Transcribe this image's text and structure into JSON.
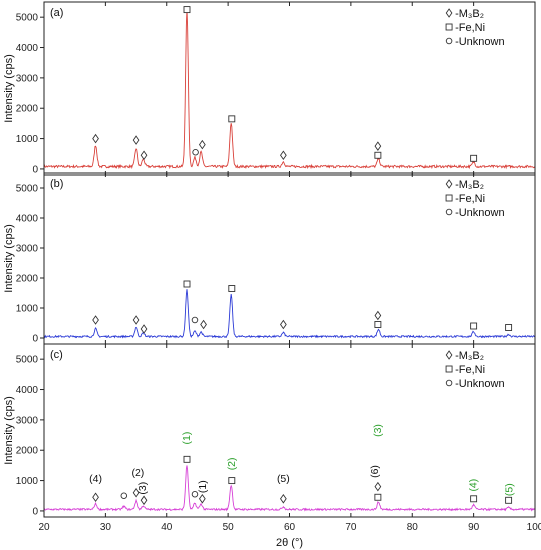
{
  "chart_data": {
    "type": "line",
    "xlabel": "2θ (°)",
    "ylabel": "Intensity (cps)",
    "xlim": [
      20,
      100
    ],
    "ylim": [
      -200,
      5500
    ],
    "x_ticks": [
      20,
      30,
      40,
      50,
      60,
      70,
      80,
      90,
      100
    ],
    "y_ticks": [
      0,
      1000,
      2000,
      3000,
      4000,
      5000
    ],
    "legend": {
      "placement": "top-right",
      "entries": [
        {
          "symbol": "diamond",
          "label": "-M₃B₂"
        },
        {
          "symbol": "square",
          "label": "-Fe,Ni"
        },
        {
          "symbol": "circle",
          "label": "-Unknown"
        }
      ]
    },
    "panels": [
      {
        "label": "(a)",
        "color": "#d9413a",
        "baseline": 80,
        "noise": 40,
        "peaks": [
          {
            "x": 28.4,
            "y": 700
          },
          {
            "x": 35.0,
            "y": 600
          },
          {
            "x": 36.2,
            "y": 250
          },
          {
            "x": 43.3,
            "y": 5150
          },
          {
            "x": 44.6,
            "y": 300
          },
          {
            "x": 45.6,
            "y": 480
          },
          {
            "x": 50.5,
            "y": 1450
          },
          {
            "x": 59.0,
            "y": 160
          },
          {
            "x": 74.5,
            "y": 260
          },
          {
            "x": 90.0,
            "y": 150
          }
        ],
        "markers": [
          {
            "symbol": "diamond",
            "x": 28.4,
            "y": 1000
          },
          {
            "symbol": "diamond",
            "x": 35.0,
            "y": 950
          },
          {
            "symbol": "diamond",
            "x": 36.3,
            "y": 450
          },
          {
            "symbol": "square",
            "x": 43.3,
            "y": 5250
          },
          {
            "symbol": "circle",
            "x": 44.7,
            "y": 550
          },
          {
            "symbol": "diamond",
            "x": 45.8,
            "y": 800
          },
          {
            "symbol": "square",
            "x": 50.6,
            "y": 1650
          },
          {
            "symbol": "diamond",
            "x": 59.0,
            "y": 450
          },
          {
            "symbol": "diamond",
            "x": 74.4,
            "y": 750
          },
          {
            "symbol": "square",
            "x": 74.4,
            "y": 450
          },
          {
            "symbol": "square",
            "x": 90.0,
            "y": 350
          }
        ],
        "annotations": []
      },
      {
        "label": "(b)",
        "color": "#2b3ad6",
        "baseline": 50,
        "noise": 30,
        "peaks": [
          {
            "x": 28.4,
            "y": 260
          },
          {
            "x": 35.0,
            "y": 320
          },
          {
            "x": 36.2,
            "y": 120
          },
          {
            "x": 43.3,
            "y": 1550
          },
          {
            "x": 44.6,
            "y": 180
          },
          {
            "x": 45.6,
            "y": 150
          },
          {
            "x": 50.5,
            "y": 1400
          },
          {
            "x": 59.0,
            "y": 130
          },
          {
            "x": 74.5,
            "y": 240
          },
          {
            "x": 90.0,
            "y": 160
          },
          {
            "x": 95.7,
            "y": 70
          }
        ],
        "markers": [
          {
            "symbol": "diamond",
            "x": 28.4,
            "y": 600
          },
          {
            "symbol": "diamond",
            "x": 35.0,
            "y": 600
          },
          {
            "symbol": "diamond",
            "x": 36.3,
            "y": 300
          },
          {
            "symbol": "square",
            "x": 43.3,
            "y": 1800
          },
          {
            "symbol": "circle",
            "x": 44.6,
            "y": 600
          },
          {
            "symbol": "diamond",
            "x": 46.0,
            "y": 450
          },
          {
            "symbol": "square",
            "x": 50.6,
            "y": 1650
          },
          {
            "symbol": "diamond",
            "x": 59.0,
            "y": 450
          },
          {
            "symbol": "diamond",
            "x": 74.4,
            "y": 750
          },
          {
            "symbol": "square",
            "x": 74.4,
            "y": 450
          },
          {
            "symbol": "square",
            "x": 90.0,
            "y": 400
          },
          {
            "symbol": "square",
            "x": 95.7,
            "y": 350
          }
        ],
        "annotations": []
      },
      {
        "label": "(c)",
        "color": "#d63fd6",
        "baseline": 50,
        "noise": 30,
        "peaks": [
          {
            "x": 28.4,
            "y": 180
          },
          {
            "x": 33.0,
            "y": 100
          },
          {
            "x": 35.0,
            "y": 280
          },
          {
            "x": 36.2,
            "y": 120
          },
          {
            "x": 43.3,
            "y": 1450
          },
          {
            "x": 44.6,
            "y": 200
          },
          {
            "x": 45.6,
            "y": 180
          },
          {
            "x": 50.5,
            "y": 800
          },
          {
            "x": 59.0,
            "y": 90
          },
          {
            "x": 74.5,
            "y": 240
          },
          {
            "x": 90.0,
            "y": 150
          },
          {
            "x": 95.7,
            "y": 60
          }
        ],
        "markers": [
          {
            "symbol": "diamond",
            "x": 28.4,
            "y": 450
          },
          {
            "symbol": "circle",
            "x": 33.0,
            "y": 500
          },
          {
            "symbol": "diamond",
            "x": 35.0,
            "y": 600
          },
          {
            "symbol": "diamond",
            "x": 36.3,
            "y": 350
          },
          {
            "symbol": "square",
            "x": 43.3,
            "y": 1700
          },
          {
            "symbol": "circle",
            "x": 44.6,
            "y": 550
          },
          {
            "symbol": "diamond",
            "x": 45.8,
            "y": 400
          },
          {
            "symbol": "square",
            "x": 50.6,
            "y": 1000
          },
          {
            "symbol": "diamond",
            "x": 59.0,
            "y": 400
          },
          {
            "symbol": "diamond",
            "x": 74.4,
            "y": 800
          },
          {
            "symbol": "square",
            "x": 74.4,
            "y": 450
          },
          {
            "symbol": "square",
            "x": 90.0,
            "y": 400
          },
          {
            "symbol": "square",
            "x": 95.7,
            "y": 350
          }
        ],
        "annotations": [
          {
            "text": "(4)",
            "x": 28.4,
            "y": 950,
            "color": "#111111",
            "rotate": false
          },
          {
            "text": "(2)",
            "x": 35.3,
            "y": 1150,
            "color": "#111111",
            "rotate": false
          },
          {
            "text": "(3)",
            "x": 36.6,
            "y": 750,
            "color": "#111111",
            "rotate": true
          },
          {
            "text": "(1)",
            "x": 43.8,
            "y": 2400,
            "color": "#2ca02c",
            "rotate": true
          },
          {
            "text": "(1)",
            "x": 46.4,
            "y": 800,
            "color": "#111111",
            "rotate": true
          },
          {
            "text": "(2)",
            "x": 51.1,
            "y": 1550,
            "color": "#2ca02c",
            "rotate": true
          },
          {
            "text": "(5)",
            "x": 59.0,
            "y": 950,
            "color": "#111111",
            "rotate": false
          },
          {
            "text": "(6)",
            "x": 74.4,
            "y": 1300,
            "color": "#111111",
            "rotate": true
          },
          {
            "text": "(3)",
            "x": 74.9,
            "y": 2650,
            "color": "#2ca02c",
            "rotate": true
          },
          {
            "text": "(4)",
            "x": 90.5,
            "y": 850,
            "color": "#2ca02c",
            "rotate": true
          },
          {
            "text": "(5)",
            "x": 96.3,
            "y": 700,
            "color": "#2ca02c",
            "rotate": true
          }
        ]
      }
    ]
  }
}
